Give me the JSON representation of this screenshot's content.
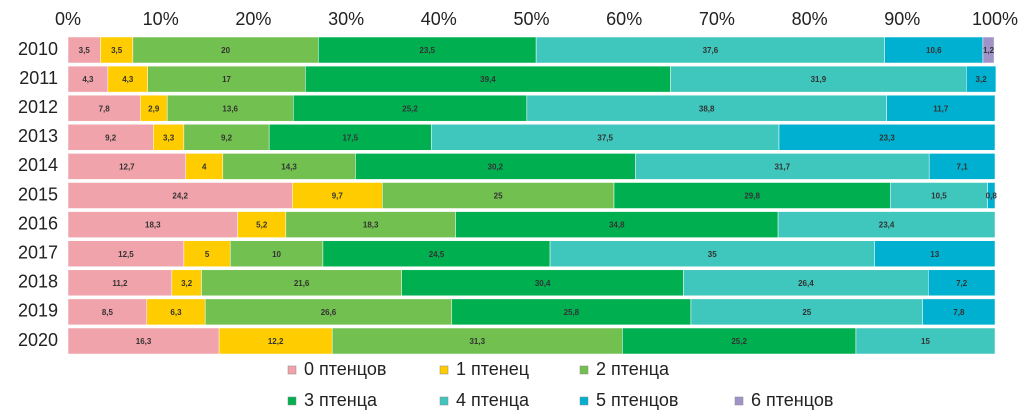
{
  "chart_data": {
    "type": "stacked-bar-horizontal",
    "categories": [
      "2010",
      "2011",
      "2012",
      "2013",
      "2014",
      "2015",
      "2016",
      "2017",
      "2018",
      "2019",
      "2020"
    ],
    "xlim": [
      0,
      100
    ],
    "xticks": [
      {
        "value": 0,
        "label": "0%"
      },
      {
        "value": 10,
        "label": "10%"
      },
      {
        "value": 20,
        "label": "20%"
      },
      {
        "value": 30,
        "label": "30%"
      },
      {
        "value": 40,
        "label": "40%"
      },
      {
        "value": 50,
        "label": "50%"
      },
      {
        "value": 60,
        "label": "60%"
      },
      {
        "value": 70,
        "label": "70%"
      },
      {
        "value": 80,
        "label": "80%"
      },
      {
        "value": 90,
        "label": "90%"
      },
      {
        "value": 100,
        "label": "100%"
      }
    ],
    "grid": false,
    "series": [
      {
        "name": "0 птенцов",
        "color": "#f0a3ab",
        "values": [
          3.5,
          4.3,
          7.8,
          9.2,
          12.7,
          24.2,
          18.3,
          12.5,
          11.2,
          8.5,
          16.3
        ],
        "value_labels": [
          "3,5",
          "4,3",
          "7,8",
          "9,2",
          "12,7",
          "24,2",
          "18,3",
          "12,5",
          "11,2",
          "8,5",
          "16,3"
        ]
      },
      {
        "name": "1 птенец",
        "color": "#ffcc00",
        "values": [
          3.5,
          4.3,
          2.9,
          3.3,
          4,
          9.7,
          5.2,
          5,
          3.2,
          6.3,
          12.2
        ],
        "value_labels": [
          "3,5",
          "4,3",
          "2,9",
          "3,3",
          "4",
          "9,7",
          "5,2",
          "5",
          "3,2",
          "6,3",
          "12,2"
        ]
      },
      {
        "name": "2 птенца",
        "color": "#72c04f",
        "values": [
          20,
          17,
          13.6,
          9.2,
          14.3,
          25,
          18.3,
          10,
          21.6,
          26.6,
          31.3
        ],
        "value_labels": [
          "20",
          "17",
          "13,6",
          "9,2",
          "14,3",
          "25",
          "18,3",
          "10",
          "21,6",
          "26,6",
          "31,3"
        ]
      },
      {
        "name": "3 птенца",
        "color": "#00b050",
        "values": [
          23.5,
          39.4,
          25.2,
          17.5,
          30.2,
          29.8,
          34.8,
          24.5,
          30.4,
          25.8,
          25.2
        ],
        "value_labels": [
          "23,5",
          "39,4",
          "25,2",
          "17,5",
          "30,2",
          "29,8",
          "34,8",
          "24,5",
          "30,4",
          "25,8",
          "25,2"
        ]
      },
      {
        "name": "4 птенца",
        "color": "#3fc6bd",
        "values": [
          37.6,
          31.9,
          38.8,
          37.5,
          31.7,
          10.5,
          23.4,
          35,
          26.4,
          25,
          15
        ],
        "value_labels": [
          "37,6",
          "31,9",
          "38,8",
          "37,5",
          "31,7",
          "10,5",
          "23,4",
          "35",
          "26,4",
          "25",
          "15"
        ]
      },
      {
        "name": "5 птенцов",
        "color": "#00b0d0",
        "values": [
          10.6,
          3.2,
          11.7,
          23.3,
          7.1,
          0.8,
          null,
          13,
          7.2,
          7.8,
          null
        ],
        "value_labels": [
          "10,6",
          "3,2",
          "11,7",
          "23,3",
          "7,1",
          "0,8",
          null,
          "13",
          "7,2",
          "7,8",
          null
        ]
      },
      {
        "name": "6 птенцов",
        "color": "#a093c8",
        "values": [
          1.2,
          null,
          null,
          null,
          null,
          null,
          null,
          null,
          null,
          null,
          null
        ],
        "value_labels": [
          "1,2",
          null,
          null,
          null,
          null,
          null,
          null,
          null,
          null,
          null,
          null
        ]
      }
    ]
  }
}
